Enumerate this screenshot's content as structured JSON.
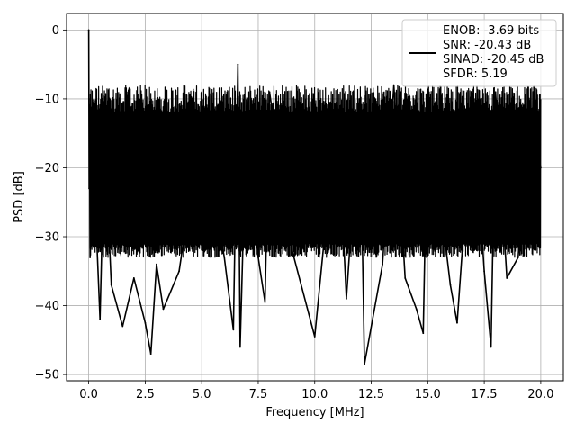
{
  "chart_data": {
    "type": "line",
    "title": "",
    "xlabel": "Frequency [MHz]",
    "ylabel": "PSD [dB]",
    "xlim": [
      -0.98,
      21.0
    ],
    "ylim": [
      -50.9,
      2.4
    ],
    "xticks": [
      0.0,
      2.5,
      5.0,
      7.5,
      10.0,
      12.5,
      15.0,
      17.5,
      20.0
    ],
    "xtick_labels": [
      "0.0",
      "2.5",
      "5.0",
      "7.5",
      "10.0",
      "12.5",
      "15.0",
      "17.5",
      "20.0"
    ],
    "yticks": [
      0,
      -10,
      -20,
      -30,
      -40,
      -50
    ],
    "ytick_labels": [
      "0",
      "−10",
      "−20",
      "−30",
      "−40",
      "−50"
    ],
    "grid": true,
    "legend_position": "top-right",
    "legend": [
      "ENOB: -3.69 bits",
      "SNR: -20.43 dB",
      "SINAD: -20.45 dB",
      "SFDR: 5.19"
    ],
    "line_color": "#000000",
    "series": [
      {
        "x": [
          0.0,
          0.02,
          0.04,
          0.06,
          0.08,
          0.1,
          0.15,
          0.2,
          0.25,
          0.3,
          0.5,
          0.7,
          1.0,
          1.5,
          2.0,
          2.5,
          2.75,
          3.0,
          3.3,
          4.0,
          5.0,
          6.0,
          6.4,
          6.6,
          6.7,
          7.0,
          7.5,
          7.8,
          8.0,
          9.0,
          10.0,
          11.0,
          11.4,
          12.0,
          12.2,
          13.0,
          13.5,
          14.0,
          14.5,
          14.8,
          15.0,
          16.0,
          16.3,
          17.0,
          17.5,
          17.8,
          18.0,
          18.5,
          19.0,
          19.5,
          20.0
        ],
        "y": [
          0.0,
          -23.0,
          -15.0,
          -33.0,
          -10.0,
          -28.0,
          -12.0,
          -31.0,
          -14.0,
          -26.0,
          -42.0,
          -15.0,
          -37.0,
          -43.0,
          -36.0,
          -42.5,
          -47.0,
          -34.0,
          -40.5,
          -35.0,
          -13.0,
          -33.0,
          -43.5,
          -5.0,
          -46.0,
          -10.0,
          -33.0,
          -39.5,
          -9.0,
          -32.0,
          -44.5,
          -11.0,
          -39.0,
          -10.0,
          -48.5,
          -34.0,
          -8.0,
          -36.0,
          -40.5,
          -44.0,
          -9.5,
          -37.0,
          -42.5,
          -10.0,
          -35.0,
          -46.0,
          -9.0,
          -36.0,
          -33.0,
          -11.0,
          -20.0
        ]
      }
    ]
  }
}
